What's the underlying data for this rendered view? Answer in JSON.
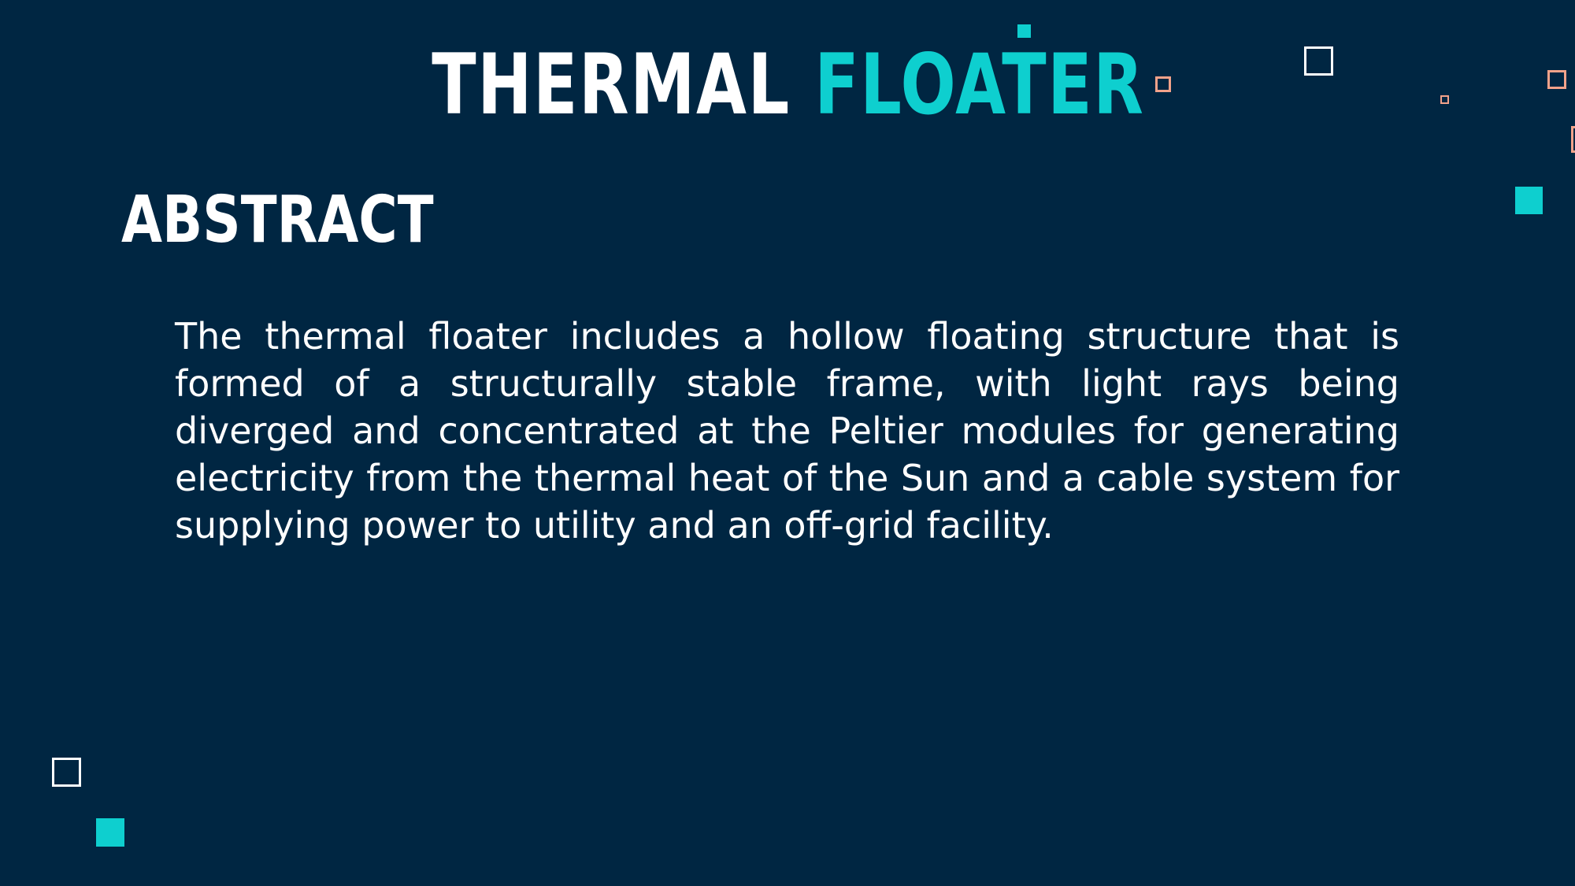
{
  "slide": {
    "title_main": "THERMAL",
    "title_accent": "FLOATER",
    "heading": "ABSTRACT",
    "body": "The thermal floater includes a hollow floating structure that is formed of a structurally stable frame, with light rays being diverged and concentrated at the Peltier modules for generating electricity from the thermal heat of the Sun and a cable system for supplying power to utility and an off-grid facility."
  },
  "colors": {
    "background": "#002642",
    "accent": "#0ecfcf",
    "text": "#ffffff",
    "decor_outline_warm": "#f2a28a"
  }
}
